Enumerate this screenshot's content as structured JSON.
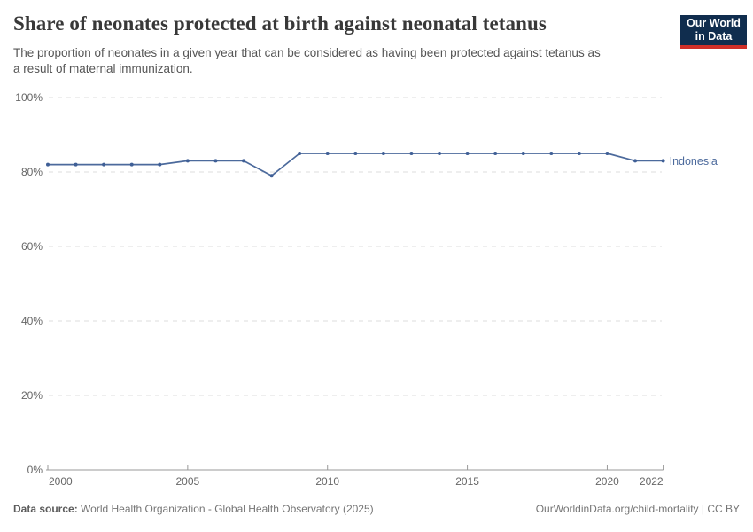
{
  "header": {
    "logo": {
      "line1": "Our World",
      "line2": "in Data"
    }
  },
  "colors": {
    "line": "#4c6a9c",
    "dot": "#3f5f96",
    "grid": "#dddddd",
    "axis": "#999999",
    "tick_label": "#666666",
    "end_label": "#4c6a9c",
    "logo_bg": "#102d4e",
    "logo_accent": "#cf2f28"
  },
  "chart_data": {
    "type": "line",
    "title": "Share of neonates protected at birth against neonatal tetanus",
    "subtitle": "The proportion of neonates in a given year that can be considered as having been protected against tetanus as\na result of maternal immunization.",
    "x": [
      2000,
      2001,
      2002,
      2003,
      2004,
      2005,
      2006,
      2007,
      2008,
      2009,
      2010,
      2011,
      2012,
      2013,
      2014,
      2015,
      2016,
      2017,
      2018,
      2019,
      2020,
      2021,
      2022
    ],
    "series": [
      {
        "name": "Indonesia",
        "values": [
          82,
          82,
          82,
          82,
          82,
          83,
          83,
          83,
          79,
          85,
          85,
          85,
          85,
          85,
          85,
          85,
          85,
          85,
          85,
          85,
          85,
          83,
          83
        ]
      }
    ],
    "xlabel": "",
    "ylabel": "",
    "xlim": [
      2000,
      2022
    ],
    "ylim": [
      0,
      100
    ],
    "x_ticks": [
      2000,
      2005,
      2010,
      2015,
      2020,
      2022
    ],
    "y_ticks": [
      0,
      20,
      40,
      60,
      80,
      100
    ],
    "y_tick_suffix": "%",
    "grid": "horizontal dashed",
    "legend_position": "end-of-line label",
    "end_label": "Indonesia"
  },
  "footer": {
    "source_label": "Data source:",
    "source_text": " World Health Organization - Global Health Observatory (2025)",
    "right_text": "OurWorldinData.org/child-mortality | CC BY"
  }
}
